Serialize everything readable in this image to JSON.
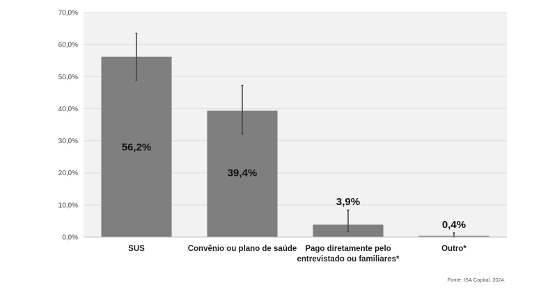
{
  "chart_data": {
    "type": "bar",
    "categories": [
      [
        "SUS"
      ],
      [
        "Convênio ou plano de saúde"
      ],
      [
        "Pago diretamente pelo",
        "entrevistado ou familiares*"
      ],
      [
        "Outro*"
      ]
    ],
    "values": [
      56.2,
      39.4,
      3.9,
      0.4
    ],
    "data_labels": [
      "56,2%",
      "39,4%",
      "3,9%",
      "0,4%"
    ],
    "error_bars": [
      {
        "low": 48.9,
        "high": 63.5
      },
      {
        "low": 32.2,
        "high": 47.3
      },
      {
        "low": 1.8,
        "high": 8.4
      },
      {
        "low": 0.0,
        "high": 1.3
      }
    ],
    "ylim": [
      0,
      70
    ],
    "yticks": [
      "0,0%",
      "10,0%",
      "20,0%",
      "30,0%",
      "40,0%",
      "50,0%",
      "60,0%",
      "70,0%"
    ],
    "grid": true,
    "title": "",
    "xlabel": "",
    "ylabel": "",
    "colors": {
      "bar": "#7f7f7f",
      "plot_background": "#f2f2f2",
      "gridline": "#d9d9d9",
      "error_bar": "#404040"
    }
  },
  "source": "Fonte: ISA Capital, 2024."
}
